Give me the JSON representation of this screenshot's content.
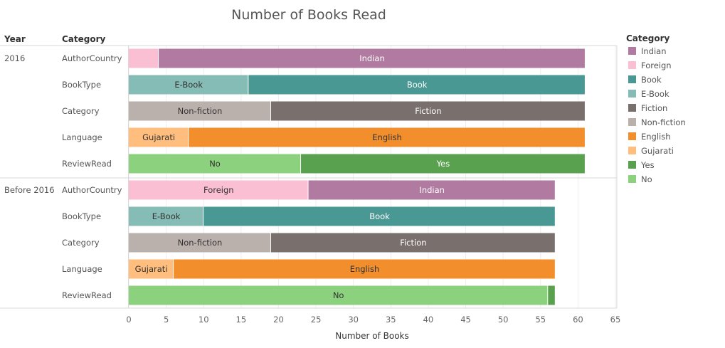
{
  "chart_data": {
    "type": "bar",
    "orientation": "horizontal",
    "stacked": true,
    "title": "Number of Books Read",
    "xlabel": "Number of Books",
    "xlim": [
      0,
      65
    ],
    "x_ticks": [
      0,
      5,
      10,
      15,
      20,
      25,
      30,
      35,
      40,
      45,
      50,
      55,
      60,
      65
    ],
    "row_headers": [
      "Year",
      "Category"
    ],
    "legend": {
      "title": "Category",
      "placement": "right",
      "entries": [
        {
          "name": "Indian",
          "color": "#b07aa1"
        },
        {
          "name": "Foreign",
          "color": "#fabfd2"
        },
        {
          "name": "Book",
          "color": "#499894"
        },
        {
          "name": "E-Book",
          "color": "#86bcb6"
        },
        {
          "name": "Fiction",
          "color": "#79706e"
        },
        {
          "name": "Non-fiction",
          "color": "#bab0ac"
        },
        {
          "name": "English",
          "color": "#f28e2b"
        },
        {
          "name": "Gujarati",
          "color": "#ffbe7d"
        },
        {
          "name": "Yes",
          "color": "#59a14f"
        },
        {
          "name": "No",
          "color": "#8cd17d"
        }
      ]
    },
    "groups": [
      {
        "year": "2016",
        "rows": [
          {
            "category": "AuthorCountry",
            "segments": [
              {
                "name": "Foreign",
                "value": 4,
                "label": ""
              },
              {
                "name": "Indian",
                "value": 57,
                "label": "Indian"
              }
            ]
          },
          {
            "category": "BookType",
            "segments": [
              {
                "name": "E-Book",
                "value": 16,
                "label": "E-Book"
              },
              {
                "name": "Book",
                "value": 45,
                "label": "Book"
              }
            ]
          },
          {
            "category": "Category",
            "segments": [
              {
                "name": "Non-fiction",
                "value": 19,
                "label": "Non-fiction"
              },
              {
                "name": "Fiction",
                "value": 42,
                "label": "Fiction"
              }
            ]
          },
          {
            "category": "Language",
            "segments": [
              {
                "name": "Gujarati",
                "value": 8,
                "label": "Gujarati"
              },
              {
                "name": "English",
                "value": 53,
                "label": "English"
              }
            ]
          },
          {
            "category": "ReviewRead",
            "segments": [
              {
                "name": "No",
                "value": 23,
                "label": "No"
              },
              {
                "name": "Yes",
                "value": 38,
                "label": "Yes"
              }
            ]
          }
        ]
      },
      {
        "year": "Before 2016",
        "rows": [
          {
            "category": "AuthorCountry",
            "segments": [
              {
                "name": "Foreign",
                "value": 24,
                "label": "Foreign"
              },
              {
                "name": "Indian",
                "value": 33,
                "label": "Indian"
              }
            ]
          },
          {
            "category": "BookType",
            "segments": [
              {
                "name": "E-Book",
                "value": 10,
                "label": "E-Book"
              },
              {
                "name": "Book",
                "value": 47,
                "label": "Book"
              }
            ]
          },
          {
            "category": "Category",
            "segments": [
              {
                "name": "Non-fiction",
                "value": 19,
                "label": "Non-fiction"
              },
              {
                "name": "Fiction",
                "value": 38,
                "label": "Fiction"
              }
            ]
          },
          {
            "category": "Language",
            "segments": [
              {
                "name": "Gujarati",
                "value": 6,
                "label": "Gujarati"
              },
              {
                "name": "English",
                "value": 51,
                "label": "English"
              }
            ]
          },
          {
            "category": "ReviewRead",
            "segments": [
              {
                "name": "No",
                "value": 56,
                "label": "No"
              },
              {
                "name": "Yes",
                "value": 1,
                "label": ""
              }
            ]
          }
        ]
      }
    ],
    "dark_label_categories": [
      "Foreign",
      "E-Book",
      "Non-fiction",
      "English",
      "Gujarati",
      "No"
    ]
  }
}
